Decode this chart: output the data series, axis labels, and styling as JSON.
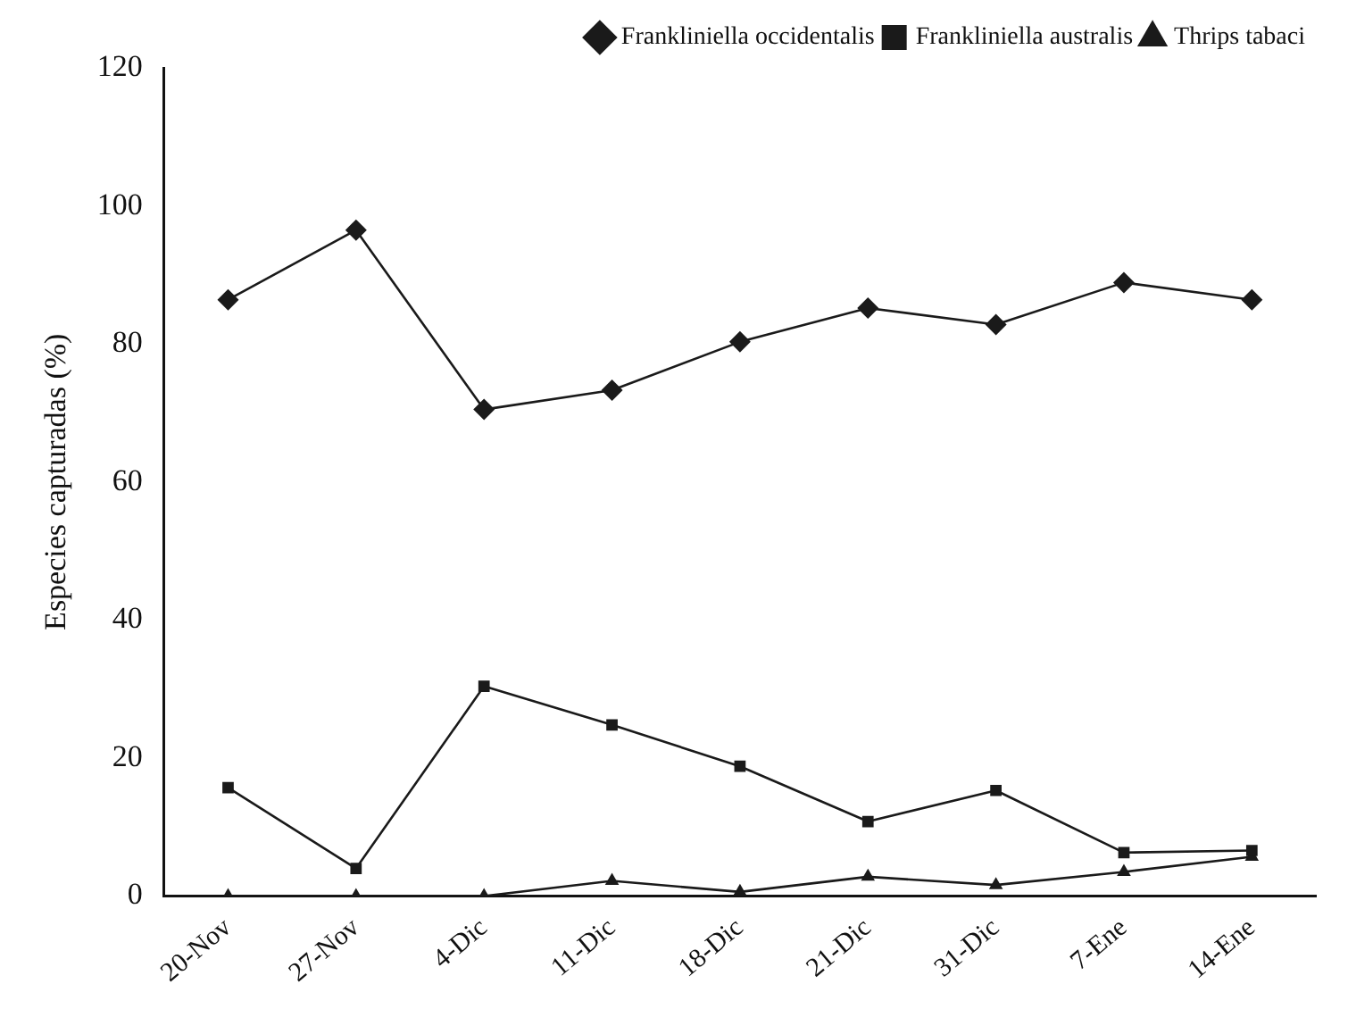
{
  "chart_data": {
    "type": "line",
    "ylabel": "Especies capturadas (%)",
    "categories": [
      "20-Nov",
      "27-Nov",
      "4-Dic",
      "11-Dic",
      "18-Dic",
      "21-Dic",
      "31-Dic",
      "7-Ene",
      "14-Ene"
    ],
    "series": [
      {
        "name": "Frankliniella occidentalis",
        "color": "#1a1a1a",
        "marker": "diamond",
        "values": [
          86.4,
          96.5,
          70.5,
          73.3,
          80.3,
          85.2,
          82.8,
          88.9,
          86.4
        ]
      },
      {
        "name": "Frankliniella australis",
        "color": "#1a1a1a",
        "marker": "square",
        "values": [
          15.7,
          4.0,
          30.4,
          24.8,
          18.8,
          10.8,
          15.3,
          6.3,
          6.6
        ]
      },
      {
        "name": "Thrips tabaci",
        "color": "#1a1a1a",
        "marker": "triangle",
        "values": [
          0,
          0,
          0,
          2.2,
          0.6,
          2.8,
          1.6,
          3.5,
          5.7
        ]
      }
    ],
    "ylim": [
      0,
      120
    ],
    "yticks": [
      0,
      20,
      40,
      60,
      80,
      100,
      120
    ],
    "grid": false,
    "legend": "top right",
    "line_style": "solid"
  }
}
